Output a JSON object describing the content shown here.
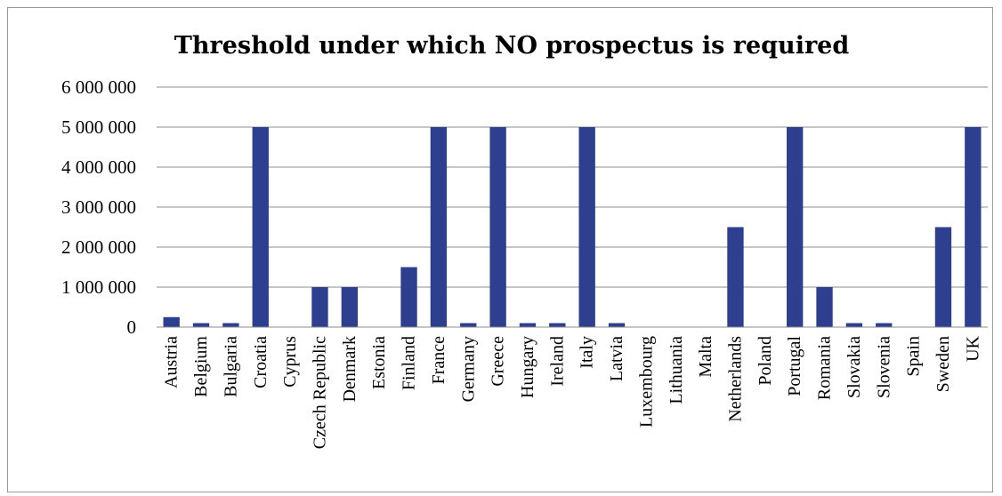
{
  "chart_data": {
    "type": "bar",
    "title": "Threshold under which NO prospectus is required",
    "xlabel": "",
    "ylabel": "",
    "categories": [
      "Austria",
      "Belgium",
      "Bulgaria",
      "Croatia",
      "Cyprus",
      "Czech Republic",
      "Denmark",
      "Estonia",
      "Finland",
      "France",
      "Germany",
      "Greece",
      "Hungary",
      "Ireland",
      "Italy",
      "Latvia",
      "Luxembourg",
      "Lithuania",
      "Malta",
      "Netherlands",
      "Poland",
      "Portugal",
      "Romania",
      "Slovakia",
      "Slovenia",
      "Spain",
      "Sweden",
      "UK"
    ],
    "values": [
      250000,
      100000,
      100000,
      5000000,
      0,
      1000000,
      1000000,
      0,
      1500000,
      5000000,
      100000,
      5000000,
      100000,
      100000,
      5000000,
      100000,
      0,
      0,
      0,
      2500000,
      0,
      5000000,
      1000000,
      100000,
      100000,
      0,
      2500000,
      5000000
    ],
    "ylim": [
      0,
      6000000
    ],
    "yticks": [
      0,
      1000000,
      2000000,
      3000000,
      4000000,
      5000000,
      6000000
    ],
    "ytick_labels": [
      "0",
      "1 000 000",
      "2 000 000",
      "3 000 000",
      "4 000 000",
      "5 000 000",
      "6 000 000"
    ],
    "grid": true,
    "legend": "none",
    "colors": {
      "bar": "#2e3f8f",
      "grid": "#8c8c8c"
    }
  }
}
